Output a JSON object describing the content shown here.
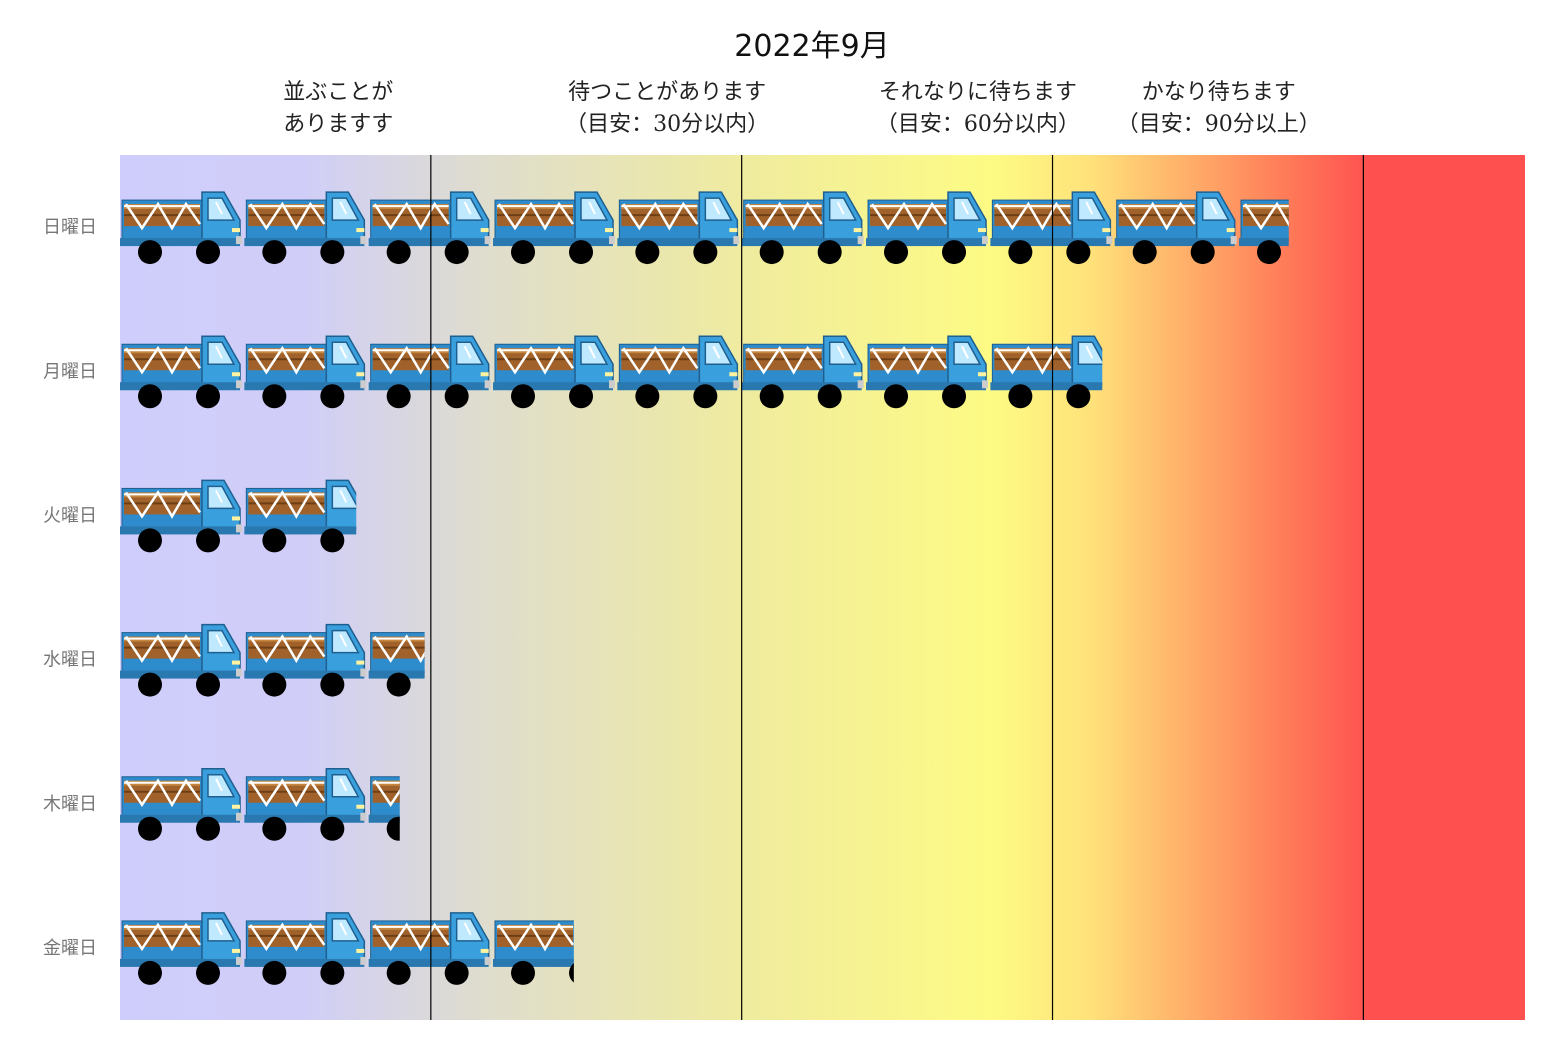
{
  "chart_data": {
    "type": "bar",
    "title": "2022年9月",
    "orientation": "horizontal",
    "pictograph_icon": "truck-icon",
    "unit_note": "each truck = 1 unit; zone boundary every 2.5 trucks",
    "categories": [
      "日曜日",
      "月曜日",
      "火曜日",
      "水曜日",
      "木曜日",
      "金曜日"
    ],
    "values": [
      9.4,
      7.9,
      1.9,
      2.45,
      2.25,
      3.65
    ],
    "xlim": [
      0,
      11.3
    ],
    "zones": [
      {
        "label": [
          "並ぶことが",
          "ありますす"
        ],
        "end": 2.5
      },
      {
        "label": [
          "待つことがあります",
          "（目安：30分以内）"
        ],
        "end": 5.0
      },
      {
        "label": [
          "それなりに待ちます",
          "（目安：60分以内）"
        ],
        "end": 7.5
      },
      {
        "label": [
          "かなり待ちます",
          "（目安：90分以上）"
        ],
        "end": 10.0
      }
    ],
    "background_gradient": [
      {
        "at": 0.0,
        "color": "#cfcdfb"
      },
      {
        "at": 0.13,
        "color": "#d0cef8"
      },
      {
        "at": 0.25,
        "color": "#dedcd0"
      },
      {
        "at": 0.45,
        "color": "#f0ec9e"
      },
      {
        "at": 0.62,
        "color": "#fdfb84"
      },
      {
        "at": 0.69,
        "color": "#ffe27a"
      },
      {
        "at": 0.83,
        "color": "#ff7b58"
      },
      {
        "at": 0.89,
        "color": "#ff5050"
      },
      {
        "at": 1.0,
        "color": "#ff5050"
      }
    ],
    "colors": {
      "truck_body": "#3aa0dd",
      "truck_cargo": "#a0622a",
      "wheel": "#000000",
      "divider": "#000000"
    }
  }
}
